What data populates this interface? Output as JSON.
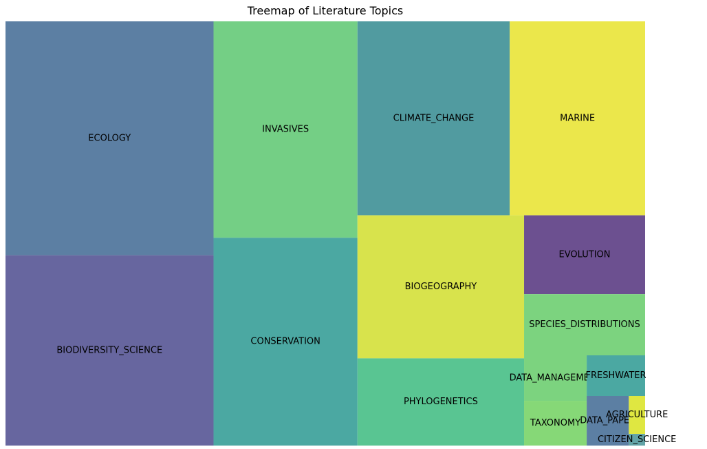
{
  "chart_data": {
    "type": "treemap",
    "title": "Treemap of Literature Topics",
    "items": [
      {
        "label": "ECOLOGY",
        "value": 1025,
        "color": "#5c7fa3"
      },
      {
        "label": "BIODIVERSITY_SCIENCE",
        "value": 834,
        "color": "#67669f"
      },
      {
        "label": "INVASIVES",
        "value": 656,
        "color": "#74cf85"
      },
      {
        "label": "CONSERVATION",
        "value": 630,
        "color": "#4ba8a2"
      },
      {
        "label": "CLIMATE_CHANGE",
        "value": 622,
        "color": "#519ba0"
      },
      {
        "label": "MARINE",
        "value": 553,
        "color": "#ebe74b"
      },
      {
        "label": "BIOGEOGRAPHY",
        "value": 502,
        "color": "#d8e34c"
      },
      {
        "label": "PHYLOGENETICS",
        "value": 306,
        "color": "#59c592"
      },
      {
        "label": "EVOLUTION",
        "value": 201,
        "color": "#6c5090"
      },
      {
        "label": "SPECIES_DISTRIBUTIONS",
        "value": 156,
        "color": "#7cd37f"
      },
      {
        "label": "DATA_MANAGEMENT",
        "value": 60,
        "color": "#7cd37f"
      },
      {
        "label": "TAXONOMY",
        "value": 59,
        "color": "#86d877"
      },
      {
        "label": "FRESHWATER",
        "value": 50,
        "color": "#4ba8a2"
      },
      {
        "label": "DATA_PAPER",
        "value": 44,
        "color": "#5c7fa3"
      },
      {
        "label": "AGRICULTURE",
        "value": 13,
        "color": "#dfe741"
      },
      {
        "label": "CITIZEN_SCIENCE",
        "value": 4,
        "color": "#62a3a6"
      }
    ]
  }
}
